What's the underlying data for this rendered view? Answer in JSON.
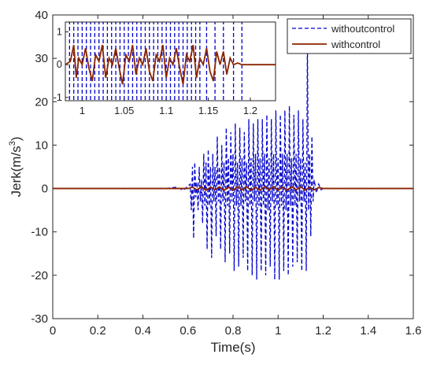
{
  "chart_data": {
    "type": "line",
    "xlabel": "Time(s)",
    "ylabel_base": "Jerk(m/s",
    "ylabel_sup": "3",
    "ylabel_close": ")",
    "xlim": [
      0,
      1.6
    ],
    "ylim": [
      -30,
      40
    ],
    "xticks": [
      0,
      0.2,
      0.4,
      0.6,
      0.8,
      1,
      1.2,
      1.4,
      1.6
    ],
    "xtick_labels": [
      "0",
      "0.2",
      "0.4",
      "0.6",
      "0.8",
      "1",
      "1.2",
      "1.4",
      "1.6"
    ],
    "yticks": [
      -30,
      -20,
      -10,
      0,
      10,
      20,
      30,
      40
    ],
    "ytick_labels": [
      "-30",
      "-20",
      "-10",
      "0",
      "10",
      "20",
      "30",
      "40"
    ],
    "grid": false,
    "legend_position": "top-right",
    "series": [
      {
        "name": "withoutcontrol",
        "color": "#0000cc",
        "style": "dashed",
        "x": [
          0,
          0.5,
          0.55,
          0.58,
          0.6,
          0.61,
          0.615,
          0.62,
          0.625,
          0.63,
          0.635,
          0.64,
          0.645,
          0.65,
          0.655,
          0.66,
          0.665,
          0.67,
          0.675,
          0.68,
          0.685,
          0.69,
          0.695,
          0.7,
          0.705,
          0.71,
          0.715,
          0.72,
          0.725,
          0.73,
          0.735,
          0.74,
          0.745,
          0.75,
          0.755,
          0.76,
          0.765,
          0.77,
          0.775,
          0.78,
          0.785,
          0.79,
          0.795,
          0.8,
          0.805,
          0.81,
          0.815,
          0.82,
          0.825,
          0.83,
          0.835,
          0.84,
          0.845,
          0.85,
          0.855,
          0.86,
          0.865,
          0.87,
          0.875,
          0.88,
          0.885,
          0.89,
          0.895,
          0.9,
          0.905,
          0.91,
          0.915,
          0.92,
          0.925,
          0.93,
          0.935,
          0.94,
          0.945,
          0.95,
          0.955,
          0.96,
          0.965,
          0.97,
          0.975,
          0.98,
          0.985,
          0.99,
          0.995,
          1.0,
          1.005,
          1.01,
          1.015,
          1.02,
          1.025,
          1.03,
          1.035,
          1.04,
          1.045,
          1.05,
          1.055,
          1.06,
          1.065,
          1.07,
          1.075,
          1.08,
          1.085,
          1.09,
          1.095,
          1.1,
          1.105,
          1.11,
          1.115,
          1.12,
          1.125,
          1.13,
          1.135,
          1.14,
          1.145,
          1.15,
          1.155,
          1.16,
          1.17,
          1.18,
          1.19,
          1.2,
          1.6
        ],
        "y": [
          0,
          0,
          0.3,
          -0.4,
          0.6,
          1,
          -5,
          5,
          -11.5,
          6,
          -2,
          1.5,
          -5,
          5,
          -3,
          2,
          -8,
          8,
          -4,
          6,
          -14,
          9,
          -4,
          5,
          -16,
          8,
          -3,
          5,
          -11,
          12,
          -3,
          5,
          -14,
          10,
          -3,
          6,
          -17,
          14,
          -4,
          7,
          -15,
          13,
          -3,
          8,
          -19,
          15,
          -4,
          6,
          -18,
          14,
          -4,
          7,
          -16,
          13,
          -3,
          6,
          -19,
          16,
          -4,
          7,
          -20,
          15,
          -3,
          8,
          -21,
          16,
          -4,
          7,
          -19,
          16,
          -4,
          8,
          -20,
          17,
          -5,
          7,
          -18,
          16,
          -3,
          8,
          -21,
          18,
          -4,
          7,
          -21,
          17,
          -4,
          8,
          -19,
          18,
          -5,
          8,
          -20,
          19,
          -4,
          7,
          -18,
          17,
          -4,
          8,
          -17,
          18,
          -3,
          7,
          -19,
          16,
          -3,
          6,
          -19,
          34,
          -5,
          8,
          -11,
          12,
          -3,
          2,
          -1,
          1,
          -0.3,
          0,
          0
        ]
      },
      {
        "name": "withcontrol",
        "color": "#8b2500",
        "style": "solid",
        "x": [
          0,
          0.6,
          0.62,
          0.64,
          0.66,
          0.68,
          0.7,
          0.72,
          0.74,
          0.76,
          0.78,
          0.8,
          0.82,
          0.84,
          0.86,
          0.88,
          0.9,
          0.92,
          0.94,
          0.96,
          0.98,
          1.0,
          1.02,
          1.04,
          1.06,
          1.08,
          1.1,
          1.12,
          1.14,
          1.16,
          1.18,
          1.2,
          1.6
        ],
        "y": [
          0,
          0,
          0.3,
          -0.3,
          0.4,
          -0.4,
          0.3,
          -0.3,
          0.4,
          -0.4,
          0.3,
          -0.4,
          0.4,
          -0.3,
          0.4,
          -0.4,
          0.3,
          -0.4,
          0.4,
          -0.3,
          0.4,
          -0.4,
          0.3,
          -0.4,
          0.4,
          -0.3,
          0.4,
          -0.4,
          0.3,
          -0.3,
          0.2,
          0,
          0
        ]
      }
    ],
    "inset": {
      "xlim": [
        0.98,
        1.23
      ],
      "ylim": [
        -1.1,
        1.3
      ],
      "xticks": [
        1,
        1.05,
        1.1,
        1.15,
        1.2
      ],
      "xtick_labels": [
        "1",
        "1.05",
        "1.1",
        "1.15",
        "1.2"
      ],
      "yticks": [
        -1,
        0,
        1
      ],
      "ytick_labels": [
        "-1",
        "0",
        "1"
      ],
      "withoutcontrol_spikes": [
        0.985,
        0.99,
        0.995,
        1.0,
        1.005,
        1.01,
        1.015,
        1.02,
        1.025,
        1.03,
        1.035,
        1.04,
        1.045,
        1.05,
        1.055,
        1.06,
        1.065,
        1.07,
        1.075,
        1.08,
        1.085,
        1.09,
        1.095,
        1.1,
        1.105,
        1.11,
        1.115,
        1.12,
        1.125,
        1.13,
        1.135,
        1.14,
        1.148,
        1.158,
        1.168,
        1.18,
        1.19
      ],
      "withcontrol": {
        "x": [
          0.98,
          0.986,
          0.99,
          0.993,
          0.996,
          1.0,
          1.004,
          1.008,
          1.012,
          1.016,
          1.02,
          1.024,
          1.028,
          1.032,
          1.036,
          1.04,
          1.044,
          1.048,
          1.052,
          1.056,
          1.06,
          1.064,
          1.068,
          1.072,
          1.076,
          1.08,
          1.084,
          1.088,
          1.092,
          1.096,
          1.1,
          1.104,
          1.108,
          1.112,
          1.116,
          1.12,
          1.124,
          1.128,
          1.132,
          1.136,
          1.14,
          1.144,
          1.148,
          1.152,
          1.156,
          1.16,
          1.164,
          1.168,
          1.172,
          1.176,
          1.18,
          1.185,
          1.19,
          1.23
        ],
        "y": [
          0,
          0.1,
          0.6,
          -0.4,
          0.2,
          0.0,
          0.5,
          -0.1,
          -0.5,
          0.3,
          0.1,
          0.6,
          -0.4,
          0.2,
          0.0,
          0.5,
          -0.1,
          -0.6,
          0.3,
          0.1,
          0.6,
          -0.3,
          0.2,
          0.0,
          0.5,
          -0.2,
          -0.5,
          0.3,
          0.1,
          0.6,
          -0.4,
          0.2,
          0.0,
          0.5,
          -0.1,
          -0.6,
          0.3,
          0.1,
          0.6,
          -0.4,
          0.2,
          0.0,
          0.5,
          -0.2,
          -0.5,
          0.4,
          0.0,
          0.4,
          -0.3,
          0.2,
          0.0,
          0.05,
          0,
          0
        ]
      }
    }
  }
}
